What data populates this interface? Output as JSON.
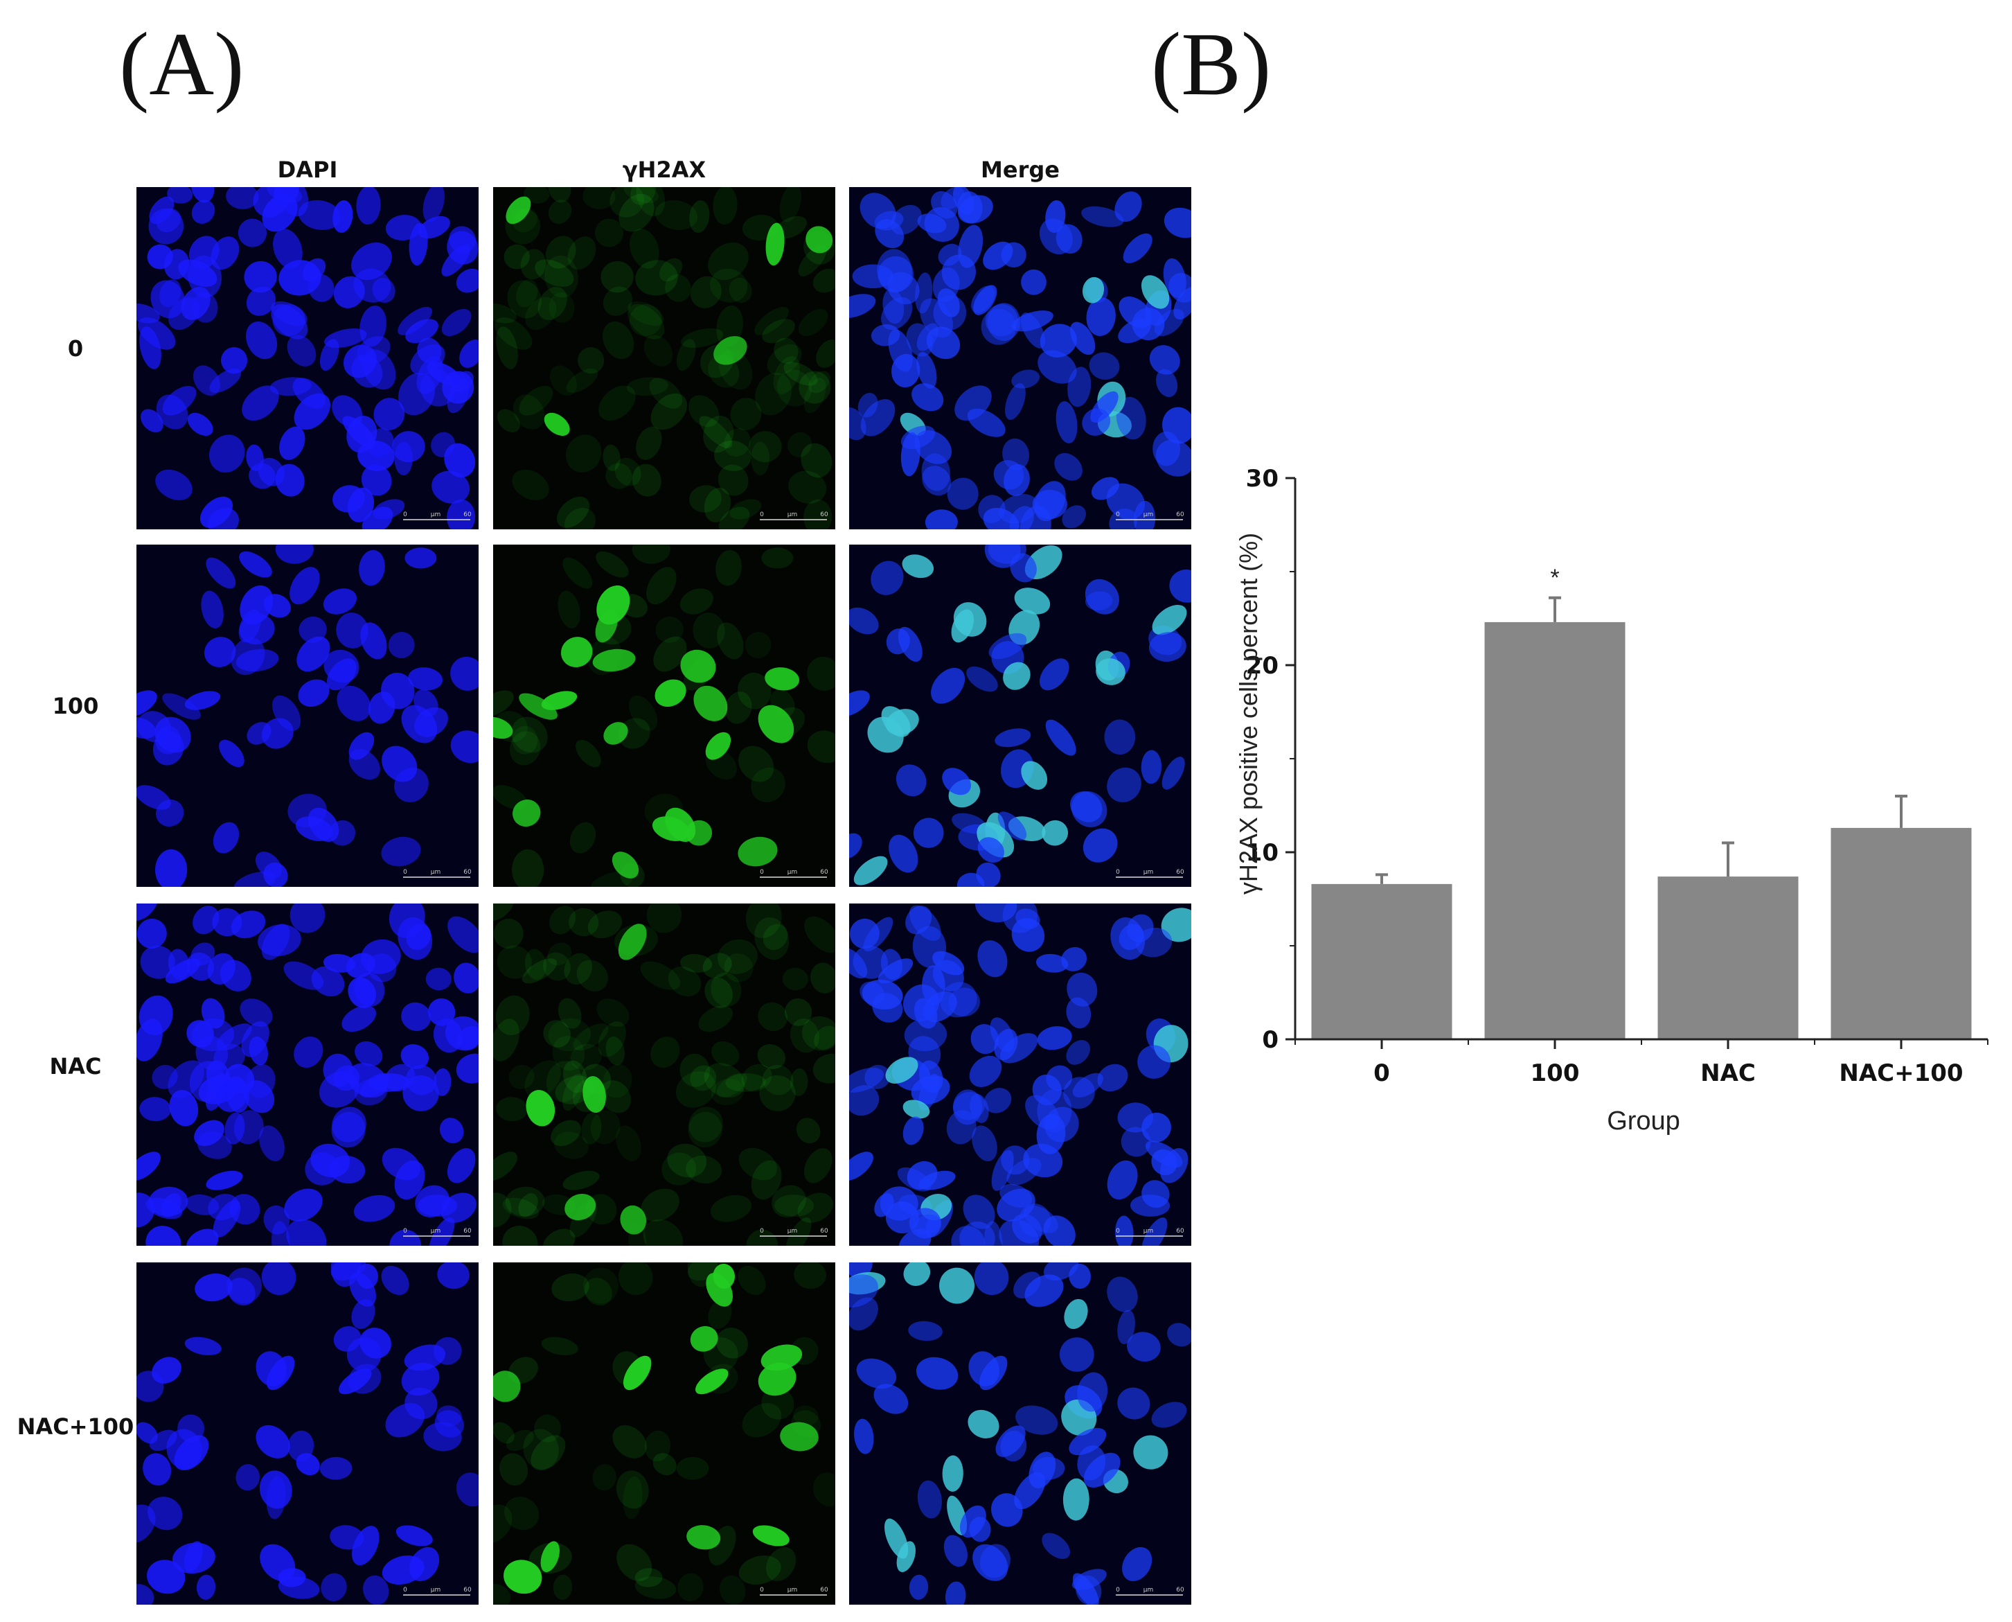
{
  "panels": {
    "a_label": "(A)",
    "b_label": "(B)"
  },
  "micrographs": {
    "columns": [
      "DAPI",
      "γH2AX",
      "Merge"
    ],
    "rows": [
      "0",
      "100",
      "NAC",
      "NAC+100"
    ],
    "scale_bar": {
      "start": "0",
      "unit": "μm",
      "end": "60"
    }
  },
  "colors": {
    "dapi": "#1a1aff",
    "gh2ax": "#22cc22",
    "merge": "#2f9fd0",
    "bar": "#878787"
  },
  "chart_data": {
    "type": "bar",
    "categories": [
      "0",
      "100",
      "NAC",
      "NAC+100"
    ],
    "values": [
      8.3,
      22.3,
      8.7,
      11.3
    ],
    "errors": [
      0.5,
      1.3,
      1.8,
      1.7
    ],
    "significance": [
      "",
      "*",
      "",
      ""
    ],
    "xlabel": "Group",
    "ylabel": "γH2AX positive cells percent (%)",
    "ylim": [
      0,
      30
    ],
    "yticks": [
      0,
      10,
      20,
      30
    ],
    "grid": false
  }
}
